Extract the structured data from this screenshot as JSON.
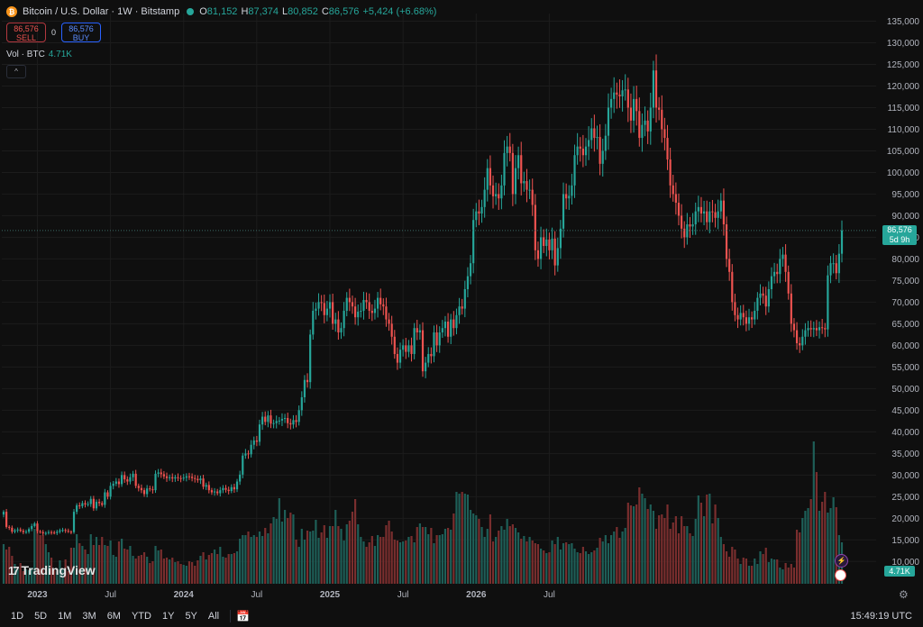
{
  "header": {
    "symbol": "Bitcoin / U.S. Dollar · 1W · Bitstamp",
    "o_label": "O",
    "o": "81,152",
    "h_label": "H",
    "h": "87,374",
    "l_label": "L",
    "l": "80,852",
    "c_label": "C",
    "c": "86,576",
    "change": "+5,424 (+6.68%)"
  },
  "trade": {
    "sell_price": "86,576",
    "sell_label": "SELL",
    "spread": "0",
    "buy_price": "86,576",
    "buy_label": "BUY"
  },
  "volume_legend": {
    "label": "Vol · BTC",
    "value": "4.71K"
  },
  "price_tag": {
    "price": "86,576",
    "countdown": "5d 9h"
  },
  "volume_tag": "4.71K",
  "brand": "TradingView",
  "timeframes": [
    "1D",
    "5D",
    "1M",
    "3M",
    "6M",
    "YTD",
    "1Y",
    "5Y",
    "All"
  ],
  "clock": "15:49:19 UTC",
  "colors": {
    "up": "#26a69a",
    "down": "#ef5350",
    "up_vol": "#1e5f58",
    "down_vol": "#7a2e2e",
    "grid": "#1c1c1c"
  },
  "chart_data": {
    "type": "candlestick",
    "y_ticks": [
      135000,
      130000,
      125000,
      120000,
      115000,
      110000,
      105000,
      100000,
      95000,
      90000,
      85000,
      80000,
      75000,
      70000,
      65000,
      60000,
      55000,
      50000,
      45000,
      40000,
      35000,
      30000,
      25000,
      20000,
      15000,
      10000
    ],
    "y_tick_labels": [
      "135,000",
      "130,000",
      "125,000",
      "120,000",
      "115,000",
      "110,000",
      "105,000",
      "100,000",
      "95,000",
      "90,000",
      "85,000",
      "80,000",
      "75,000",
      "70,000",
      "65,000",
      "60,000",
      "55,000",
      "50,000",
      "45,000",
      "40,000",
      "35,000",
      "30,000",
      "25,000",
      "20,000",
      "15,000",
      "10,000"
    ],
    "ylim": [
      8000,
      137000
    ],
    "x_labels": [
      {
        "label": "2023",
        "week": 12
      },
      {
        "label": "Jul",
        "week": 38
      },
      {
        "label": "2024",
        "week": 64
      },
      {
        "label": "Jul",
        "week": 90
      },
      {
        "label": "2025",
        "week": 116
      },
      {
        "label": "Jul",
        "week": 142
      },
      {
        "label": "2026",
        "week": 168
      },
      {
        "label": "Jul",
        "week": 194
      }
    ],
    "closes": [
      21500,
      18000,
      17800,
      16900,
      17200,
      17400,
      17100,
      16800,
      16900,
      17500,
      18200,
      18800,
      17000,
      16800,
      16500,
      16600,
      16800,
      16700,
      16600,
      16900,
      17200,
      17300,
      17100,
      16900,
      16800,
      21500,
      23000,
      22800,
      23500,
      23200,
      23300,
      24500,
      22300,
      23800,
      23500,
      23100,
      26000,
      25000,
      27500,
      28000,
      28500,
      27900,
      30000,
      29000,
      28500,
      29500,
      30300,
      27500,
      27000,
      26500,
      25600,
      26900,
      26700,
      26500,
      30300,
      30600,
      30200,
      29700,
      29300,
      29500,
      29200,
      29500,
      29300,
      29200,
      29400,
      29700,
      29600,
      29300,
      29100,
      28800,
      29200,
      27300,
      27700,
      26500,
      26000,
      26200,
      25800,
      26500,
      27000,
      26600,
      26300,
      27200,
      26700,
      28500,
      30100,
      34500,
      35000,
      34800,
      37000,
      38000,
      37700,
      41700,
      43500,
      42300,
      43800,
      41900,
      42000,
      42500,
      42600,
      43000,
      43200,
      42000,
      41700,
      42700,
      42300,
      45000,
      48000,
      52000,
      51500,
      62500,
      68000,
      68500,
      70000,
      69800,
      67000,
      68500,
      70000,
      65000,
      66000,
      63000,
      64000,
      68000,
      71000,
      70000,
      69000,
      66500,
      67800,
      68000,
      70500,
      70000,
      68000,
      67500,
      68500,
      71000,
      69500,
      69000,
      66000,
      65000,
      62000,
      58000,
      56000,
      59000,
      60000,
      58500,
      60000,
      58000,
      64000,
      63000,
      63500,
      54000,
      56000,
      58000,
      57500,
      63000,
      60000,
      63000,
      64000,
      65500,
      62000,
      66000,
      64000,
      67000,
      69000,
      68500,
      73000,
      76000,
      79000,
      89000,
      91000,
      90500,
      92000,
      96000,
      101000,
      97000,
      94500,
      95000,
      94000,
      97000,
      104500,
      106000,
      104500,
      95000,
      101000,
      104000,
      97500,
      98000,
      96000,
      96000,
      92500,
      82000,
      80000,
      85000,
      83000,
      84500,
      82000,
      84700,
      78500,
      82500,
      87000,
      95000,
      94000,
      94600,
      97000,
      104000,
      106000,
      105500,
      104000,
      106000,
      107500,
      110200,
      108000,
      108200,
      102000,
      105000,
      108500,
      115000,
      117000,
      118500,
      118000,
      117600,
      119000,
      119200,
      115000,
      112000,
      117000,
      114200,
      108000,
      111000,
      112000,
      109500,
      115000,
      123600,
      115000,
      114500,
      110000,
      108000,
      103000,
      97000,
      95000,
      93000,
      90000,
      87000,
      85000,
      88000,
      87500,
      88000,
      91000,
      92000,
      90500,
      91000,
      88500,
      91000,
      90800,
      89500,
      91000,
      93500,
      88000,
      80000,
      77000,
      70000,
      67000,
      66000,
      67500,
      66500,
      65000,
      66500,
      66000,
      68000,
      71000,
      72000,
      71500,
      69000,
      73000,
      76000,
      77000,
      76500,
      80000,
      81000,
      77000,
      72000,
      65000,
      63500,
      60500,
      60000,
      62000,
      63500,
      64000,
      63700,
      64000,
      63500,
      64200,
      64000,
      63700,
      76200,
      79000,
      79000,
      76700,
      81200,
      86576
    ],
    "volume_heights": [
      44,
      38,
      41,
      31,
      22,
      17,
      23,
      14,
      16,
      15,
      18,
      61,
      58,
      54,
      54,
      44,
      35,
      29,
      15,
      14,
      26,
      17,
      27,
      14,
      40,
      40,
      55,
      45,
      42,
      38,
      33,
      55,
      43,
      52,
      43,
      52,
      43,
      42,
      48,
      32,
      30,
      47,
      50,
      39,
      38,
      42,
      31,
      28,
      31,
      32,
      35,
      30,
      23,
      25,
      42,
      37,
      38,
      28,
      29,
      27,
      29,
      24,
      25,
      22,
      21,
      20,
      25,
      24,
      20,
      26,
      31,
      35,
      27,
      32,
      34,
      38,
      33,
      41,
      30,
      29,
      33,
      33,
      34,
      36,
      50,
      54,
      54,
      58,
      52,
      54,
      52,
      58,
      53,
      62,
      56,
      67,
      74,
      72,
      95,
      69,
      82,
      73,
      79,
      77,
      49,
      41,
      61,
      49,
      59,
      58,
      59,
      71,
      51,
      57,
      65,
      51,
      64,
      64,
      82,
      64,
      61,
      48,
      66,
      70,
      80,
      94,
      66,
      52,
      47,
      41,
      46,
      53,
      42,
      54,
      52,
      52,
      65,
      70,
      58,
      49,
      48,
      46,
      47,
      48,
      52,
      53,
      46,
      63,
      67,
      63,
      63,
      55,
      62,
      45,
      54,
      54,
      55,
      61,
      62,
      60,
      78,
      102,
      100,
      102,
      100,
      99,
      82,
      78,
      76,
      72,
      63,
      52,
      61,
      77,
      47,
      52,
      59,
      64,
      60,
      72,
      64,
      66,
      62,
      57,
      50,
      53,
      47,
      52,
      48,
      45,
      44,
      39,
      37,
      34,
      35,
      48,
      44,
      52,
      38,
      45,
      46,
      44,
      45,
      39,
      35,
      34,
      41,
      36,
      33,
      35,
      37,
      40,
      51,
      47,
      54,
      45,
      54,
      58,
      63,
      51,
      58,
      62,
      90,
      87,
      86,
      88,
      107,
      100,
      95,
      83,
      88,
      81,
      61,
      76,
      77,
      73,
      88,
      61,
      68,
      75,
      56,
      75,
      64,
      64,
      56,
      53,
      72,
      98,
      90,
      75,
      99,
      100,
      67,
      88,
      73,
      52,
      44,
      36,
      30,
      41,
      38,
      28,
      22,
      29,
      28,
      20,
      20,
      28,
      22,
      36,
      33,
      40,
      24,
      28,
      27,
      27,
      18,
      16,
      23,
      18,
      22,
      18,
      60,
      57,
      73,
      81,
      84,
      94,
      158,
      124,
      81,
      91,
      102,
      79,
      84,
      96,
      85,
      54,
      46,
      49,
      49,
      55,
      42,
      32,
      28,
      32,
      50,
      52,
      34,
      42,
      42,
      41,
      39,
      43,
      42,
      37,
      33,
      41,
      29,
      72,
      56,
      45,
      63,
      51
    ]
  }
}
